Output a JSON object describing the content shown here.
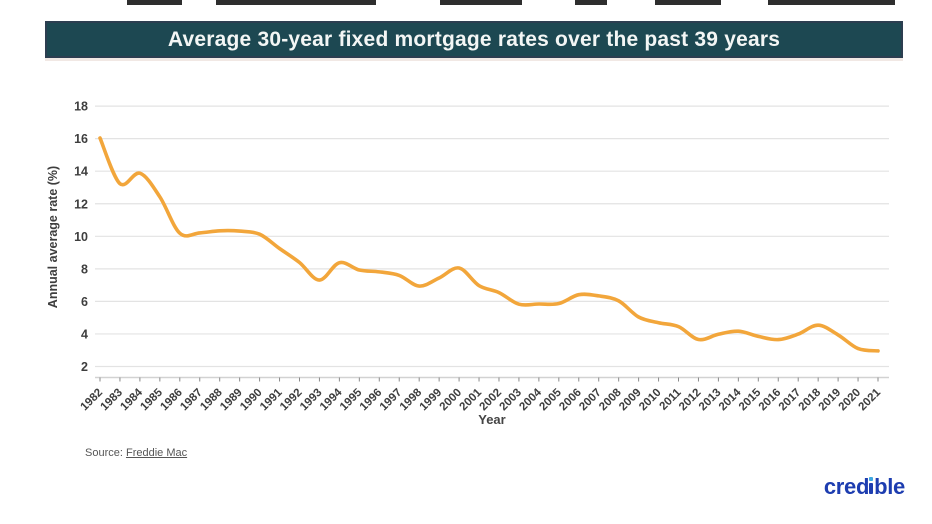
{
  "banner": {
    "title": "Average 30-year fixed mortgage rates over the past 39 years",
    "bg_color": "#1d4852",
    "text_color": "#f3f6f5"
  },
  "chart_data": {
    "type": "line",
    "title": "Average 30-year fixed mortgage rates over the past 39 years",
    "xlabel": "Year",
    "ylabel": "Annual average rate (%)",
    "x": [
      1982,
      1983,
      1984,
      1985,
      1986,
      1987,
      1988,
      1989,
      1990,
      1991,
      1992,
      1993,
      1994,
      1995,
      1996,
      1997,
      1998,
      1999,
      2000,
      2001,
      2002,
      2003,
      2004,
      2005,
      2006,
      2007,
      2008,
      2009,
      2010,
      2011,
      2012,
      2013,
      2014,
      2015,
      2016,
      2017,
      2018,
      2019,
      2020,
      2021
    ],
    "series": [
      {
        "name": "30-year fixed mortgage rate",
        "color": "#f2a63b",
        "values": [
          16.04,
          13.24,
          13.88,
          12.43,
          10.19,
          10.21,
          10.34,
          10.32,
          10.13,
          9.25,
          8.39,
          7.31,
          8.38,
          7.93,
          7.81,
          7.6,
          6.94,
          7.44,
          8.05,
          6.97,
          6.54,
          5.83,
          5.84,
          5.87,
          6.41,
          6.34,
          6.03,
          5.04,
          4.69,
          4.45,
          3.66,
          3.98,
          4.17,
          3.85,
          3.65,
          3.99,
          4.54,
          3.94,
          3.1,
          2.96
        ]
      }
    ],
    "yticks": [
      2,
      4,
      6,
      8,
      10,
      12,
      14,
      16,
      18
    ],
    "ylim": [
      1.3,
      18
    ],
    "grid": true,
    "legend": "none",
    "gridline_color": "#e3e3e3",
    "axis_color": "#d2d2d2",
    "tick_label_color": "#3e3e3e"
  },
  "footer": {
    "source_prefix": "Source: ",
    "source_link": "Freddie Mac",
    "logo_text": "credible",
    "logo_before_i": "cred",
    "logo_after_i": "ble",
    "logo_color": "#1d3db0",
    "logo_dot_color": "#3fa9e0"
  }
}
